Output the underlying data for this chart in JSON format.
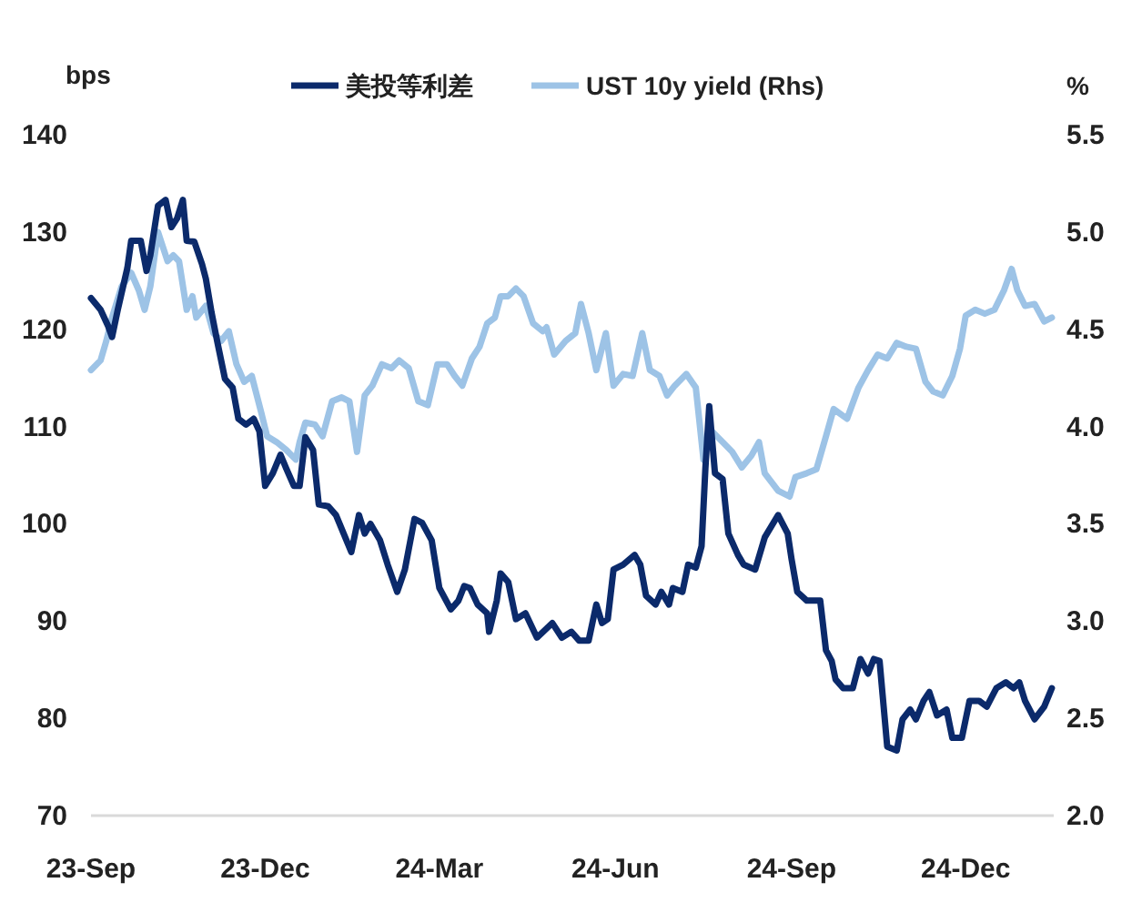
{
  "chart_data": {
    "type": "line",
    "ylabel": "bps",
    "y2label": "%",
    "legend": "top",
    "xlim": [
      "2023-09-01",
      "2025-01-16"
    ],
    "xticks": [
      {
        "value": "2023-09-01",
        "label": "23-Sep"
      },
      {
        "value": "2023-12-01",
        "label": "23-Dec"
      },
      {
        "value": "2024-03-01",
        "label": "24-Mar"
      },
      {
        "value": "2024-06-01",
        "label": "24-Jun"
      },
      {
        "value": "2024-09-01",
        "label": "24-Sep"
      },
      {
        "value": "2024-12-01",
        "label": "24-Dec"
      }
    ],
    "ylim": [
      70,
      140
    ],
    "yticks": [
      70,
      80,
      90,
      100,
      110,
      120,
      130,
      140
    ],
    "y2lim": [
      2,
      5.5
    ],
    "y2ticks": [
      {
        "value": 2,
        "label": "2.0"
      },
      {
        "value": 2.5,
        "label": "2.5"
      },
      {
        "value": 3,
        "label": "3.0"
      },
      {
        "value": 3.5,
        "label": "3.5"
      },
      {
        "value": 4,
        "label": "4.0"
      },
      {
        "value": 4.5,
        "label": "4.5"
      },
      {
        "value": 5,
        "label": "5.0"
      },
      {
        "value": 5.5,
        "label": "5.5"
      }
    ],
    "series": [
      {
        "name": "美投等利差",
        "color": "#0b2a6b",
        "x": [
          "2023-09-01",
          "2023-09-06",
          "2023-09-10",
          "2023-09-12",
          "2023-09-15",
          "2023-09-20",
          "2023-09-22",
          "2023-09-27",
          "2023-09-30",
          "2023-10-02",
          "2023-10-06",
          "2023-10-10",
          "2023-10-13",
          "2023-10-16",
          "2023-10-19",
          "2023-10-21",
          "2023-10-25",
          "2023-10-29",
          "2023-10-31",
          "2023-11-03",
          "2023-11-06",
          "2023-11-10",
          "2023-11-14",
          "2023-11-17",
          "2023-11-21",
          "2023-11-25",
          "2023-11-28",
          "2023-12-01",
          "2023-12-05",
          "2023-12-09",
          "2023-12-12",
          "2023-12-16",
          "2023-12-19",
          "2023-12-22",
          "2023-12-26",
          "2023-12-29",
          "2024-01-03",
          "2024-01-07",
          "2024-01-11",
          "2024-01-15",
          "2024-01-19",
          "2024-01-22",
          "2024-01-25",
          "2024-01-30",
          "2024-02-03",
          "2024-02-08",
          "2024-02-12",
          "2024-02-17",
          "2024-02-21",
          "2024-02-26",
          "2024-03-01",
          "2024-03-07",
          "2024-03-11",
          "2024-03-14",
          "2024-03-17",
          "2024-03-21",
          "2024-03-26",
          "2024-03-27",
          "2024-03-31",
          "2024-04-02",
          "2024-04-06",
          "2024-04-10",
          "2024-04-15",
          "2024-04-21",
          "2024-04-29",
          "2024-05-04",
          "2024-05-09",
          "2024-05-13",
          "2024-05-18",
          "2024-05-22",
          "2024-05-25",
          "2024-05-28",
          "2024-05-31",
          "2024-06-05",
          "2024-06-11",
          "2024-06-14",
          "2024-06-17",
          "2024-06-22",
          "2024-06-25",
          "2024-06-29",
          "2024-07-01",
          "2024-07-06",
          "2024-07-09",
          "2024-07-13",
          "2024-07-16",
          "2024-07-18",
          "2024-07-20",
          "2024-07-23",
          "2024-07-27",
          "2024-07-30",
          "2024-08-04",
          "2024-08-07",
          "2024-08-13",
          "2024-08-18",
          "2024-08-25",
          "2024-08-30",
          "2024-09-01",
          "2024-09-04",
          "2024-09-09",
          "2024-09-16",
          "2024-09-19",
          "2024-09-22",
          "2024-09-24",
          "2024-09-28",
          "2024-10-03",
          "2024-10-07",
          "2024-10-11",
          "2024-10-14",
          "2024-10-17",
          "2024-10-21",
          "2024-10-26",
          "2024-10-29",
          "2024-11-02",
          "2024-11-05",
          "2024-11-09",
          "2024-11-12",
          "2024-11-16",
          "2024-11-21",
          "2024-11-24",
          "2024-11-29",
          "2024-12-03",
          "2024-12-08",
          "2024-12-12",
          "2024-12-17",
          "2024-12-22",
          "2024-12-26",
          "2024-12-29",
          "2025-01-01",
          "2025-01-06",
          "2025-01-11",
          "2025-01-15"
        ],
        "values": [
          123.2,
          122,
          120.3,
          119.2,
          122,
          126.3,
          129.1,
          129.1,
          126,
          127.6,
          132.7,
          133.3,
          130.5,
          131.4,
          133.3,
          129.1,
          129,
          126.7,
          125.2,
          121.7,
          118.7,
          114.9,
          114,
          110.8,
          110.2,
          110.8,
          109.5,
          103.9,
          105.2,
          107.1,
          105.7,
          103.9,
          103.9,
          108.9,
          107.6,
          102,
          101.8,
          100.9,
          99,
          97.1,
          100.9,
          99,
          100,
          98.3,
          95.8,
          93,
          95.3,
          100.5,
          100.1,
          98.3,
          93.4,
          91.2,
          92.1,
          93.6,
          93.4,
          91.7,
          90.8,
          88.9,
          92.1,
          94.9,
          94,
          90.2,
          90.8,
          88.3,
          89.8,
          88.3,
          88.9,
          88,
          88,
          91.7,
          89.8,
          90.2,
          95.3,
          95.8,
          96.8,
          95.8,
          92.6,
          91.7,
          93,
          91.7,
          93.4,
          93,
          95.8,
          95.5,
          97.7,
          105.7,
          112.1,
          105.2,
          104.6,
          99,
          96.8,
          95.8,
          95.3,
          98.6,
          100.9,
          99,
          96.4,
          93,
          92.1,
          92.1,
          87,
          85.9,
          84,
          83.1,
          83.1,
          86.1,
          84.6,
          86.1,
          85.9,
          77.1,
          76.7,
          79.9,
          80.9,
          79.9,
          81.8,
          82.7,
          80.3,
          80.9,
          78,
          78,
          81.8,
          81.8,
          81.2,
          83.1,
          83.7,
          83.1,
          83.7,
          81.8,
          79.9,
          81.2,
          83.1
        ]
      },
      {
        "name": "UST 10y yield (Rhs)",
        "color": "#9dc3e6",
        "axis": "y2",
        "x": [
          "2023-09-01",
          "2023-09-06",
          "2023-09-09",
          "2023-09-12",
          "2023-09-17",
          "2023-09-22",
          "2023-09-26",
          "2023-09-29",
          "2023-10-02",
          "2023-10-06",
          "2023-10-11",
          "2023-10-14",
          "2023-10-17",
          "2023-10-21",
          "2023-10-24",
          "2023-10-26",
          "2023-10-31",
          "2023-11-04",
          "2023-11-08",
          "2023-11-12",
          "2023-11-16",
          "2023-11-20",
          "2023-11-24",
          "2023-11-29",
          "2023-12-02",
          "2023-12-07",
          "2023-12-12",
          "2023-12-17",
          "2023-12-19",
          "2023-12-22",
          "2023-12-27",
          "2023-12-31",
          "2024-01-05",
          "2024-01-10",
          "2024-01-14",
          "2024-01-18",
          "2024-01-22",
          "2024-01-26",
          "2024-01-31",
          "2024-02-05",
          "2024-02-09",
          "2024-02-14",
          "2024-02-19",
          "2024-02-24",
          "2024-02-29",
          "2024-03-05",
          "2024-03-09",
          "2024-03-13",
          "2024-03-18",
          "2024-03-22",
          "2024-03-26",
          "2024-03-30",
          "2024-04-02",
          "2024-04-06",
          "2024-04-10",
          "2024-04-14",
          "2024-04-19",
          "2024-04-24",
          "2024-04-26",
          "2024-04-30",
          "2024-05-06",
          "2024-05-11",
          "2024-05-14",
          "2024-05-18",
          "2024-05-22",
          "2024-05-27",
          "2024-05-31",
          "2024-06-05",
          "2024-06-10",
          "2024-06-15",
          "2024-06-19",
          "2024-06-24",
          "2024-06-28",
          "2024-07-02",
          "2024-07-08",
          "2024-07-13",
          "2024-07-17",
          "2024-07-21",
          "2024-07-27",
          "2024-08-01",
          "2024-08-06",
          "2024-08-11",
          "2024-08-15",
          "2024-08-18",
          "2024-08-25",
          "2024-08-31",
          "2024-09-03",
          "2024-09-09",
          "2024-09-14",
          "2024-09-19",
          "2024-09-23",
          "2024-09-30",
          "2024-10-06",
          "2024-10-11",
          "2024-10-16",
          "2024-10-21",
          "2024-10-26",
          "2024-10-31",
          "2024-11-05",
          "2024-11-10",
          "2024-11-14",
          "2024-11-19",
          "2024-11-24",
          "2024-11-28",
          "2024-12-01",
          "2024-12-06",
          "2024-12-11",
          "2024-12-16",
          "2024-12-21",
          "2024-12-25",
          "2024-12-28",
          "2025-01-01",
          "2025-01-06",
          "2025-01-11",
          "2025-01-15"
        ],
        "values": [
          4.29,
          4.34,
          4.44,
          4.56,
          4.72,
          4.79,
          4.7,
          4.6,
          4.72,
          5,
          4.85,
          4.88,
          4.85,
          4.6,
          4.67,
          4.56,
          4.62,
          4.48,
          4.44,
          4.49,
          4.32,
          4.23,
          4.26,
          4.07,
          3.95,
          3.92,
          3.88,
          3.83,
          3.92,
          4.02,
          4.01,
          3.95,
          4.13,
          4.15,
          4.13,
          3.87,
          4.16,
          4.21,
          4.32,
          4.3,
          4.34,
          4.3,
          4.13,
          4.11,
          4.32,
          4.32,
          4.26,
          4.21,
          4.35,
          4.41,
          4.53,
          4.56,
          4.67,
          4.67,
          4.71,
          4.67,
          4.53,
          4.49,
          4.51,
          4.37,
          4.44,
          4.48,
          4.63,
          4.48,
          4.29,
          4.48,
          4.21,
          4.27,
          4.26,
          4.48,
          4.29,
          4.26,
          4.16,
          4.21,
          4.27,
          4.2,
          3.83,
          3.98,
          3.92,
          3.87,
          3.79,
          3.85,
          3.92,
          3.76,
          3.67,
          3.64,
          3.74,
          3.76,
          3.78,
          3.95,
          4.09,
          4.04,
          4.2,
          4.29,
          4.37,
          4.35,
          4.43,
          4.41,
          4.4,
          4.23,
          4.18,
          4.16,
          4.26,
          4.4,
          4.57,
          4.6,
          4.58,
          4.6,
          4.7,
          4.81,
          4.7,
          4.62,
          4.63,
          4.54,
          4.56
        ]
      }
    ]
  }
}
